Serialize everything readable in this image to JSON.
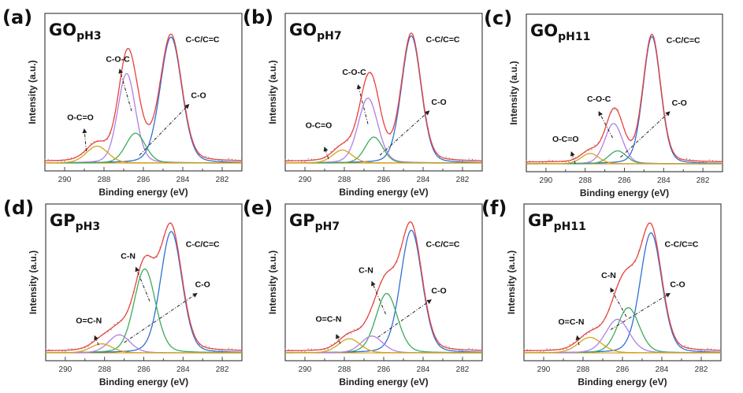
{
  "colors": {
    "envelope": "#e8423c",
    "raw_points": "#8a8a8a",
    "C-C/C=C": "#2f6fd6",
    "C-O-C": "#b27ee6",
    "C-N": "#3cab5c",
    "C-O_GO": "#3cab5c",
    "C-O_GP": "#b27ee6",
    "O-C=O": "#d6a21c",
    "O=C-N": "#d6a21c",
    "frame": "#444444",
    "arrow": "#222222"
  },
  "chart_data": [
    {
      "type": "line",
      "panel": "(a)",
      "title_main": "GO",
      "title_sub": "pH3",
      "xlabel": "Binding energy (eV)",
      "ylabel": "Intensity (a.u.)",
      "xlim": [
        291,
        281
      ],
      "ylim": [
        0,
        1.08
      ],
      "xticks": [
        290,
        288,
        286,
        284,
        282
      ],
      "grid": false,
      "series": [
        {
          "name": "C-C/C=C",
          "center": 284.6,
          "height": 0.97,
          "sigma": 0.55,
          "color_key": "C-C/C=C"
        },
        {
          "name": "C-O-C",
          "center": 286.85,
          "height": 0.69,
          "sigma": 0.45,
          "color_key": "C-O-C"
        },
        {
          "name": "C-O",
          "center": 286.4,
          "height": 0.23,
          "sigma": 0.5,
          "color_key": "C-O_GO"
        },
        {
          "name": "O-C=O",
          "center": 288.35,
          "height": 0.13,
          "sigma": 0.55,
          "color_key": "O-C=O"
        }
      ],
      "annotations": [
        {
          "text": "C-C/C=C",
          "x": 283.0,
          "y": 0.93
        },
        {
          "text": "C-O-C",
          "x": 287.3,
          "y": 0.78,
          "arrow_from": [
            286.6,
            0.4
          ],
          "arrow_to": [
            287.2,
            0.72
          ]
        },
        {
          "text": "C-O",
          "x": 283.2,
          "y": 0.5,
          "arrow_from": [
            286.2,
            0.06
          ],
          "arrow_to": [
            283.7,
            0.45
          ]
        },
        {
          "text": "O-C=O",
          "x": 289.2,
          "y": 0.33,
          "arrow_from": [
            288.9,
            0.09
          ],
          "arrow_to": [
            289.0,
            0.26
          ]
        }
      ]
    },
    {
      "type": "line",
      "panel": "(b)",
      "title_main": "GO",
      "title_sub": "pH7",
      "xlabel": "Binding energy (eV)",
      "ylabel": "Intensity (a.u.)",
      "xlim": [
        291,
        281
      ],
      "ylim": [
        0,
        1.08
      ],
      "xticks": [
        290,
        288,
        286,
        284,
        282
      ],
      "grid": false,
      "series": [
        {
          "name": "C-C/C=C",
          "center": 284.6,
          "height": 0.98,
          "sigma": 0.5,
          "color_key": "C-C/C=C"
        },
        {
          "name": "C-O-C",
          "center": 286.8,
          "height": 0.5,
          "sigma": 0.5,
          "color_key": "C-O-C"
        },
        {
          "name": "C-O",
          "center": 286.5,
          "height": 0.2,
          "sigma": 0.45,
          "color_key": "C-O_GO"
        },
        {
          "name": "O-C=O",
          "center": 288.1,
          "height": 0.1,
          "sigma": 0.5,
          "color_key": "O-C=O"
        }
      ],
      "annotations": [
        {
          "text": "C-C/C=C",
          "x": 283.0,
          "y": 0.93
        },
        {
          "text": "C-O-C",
          "x": 287.5,
          "y": 0.68,
          "arrow_from": [
            286.8,
            0.3
          ],
          "arrow_to": [
            287.3,
            0.6
          ]
        },
        {
          "text": "C-O",
          "x": 283.2,
          "y": 0.45,
          "arrow_from": [
            286.2,
            0.06
          ],
          "arrow_to": [
            283.7,
            0.4
          ]
        },
        {
          "text": "O-C=O",
          "x": 289.3,
          "y": 0.27,
          "arrow_from": [
            288.8,
            0.03
          ],
          "arrow_to": [
            289.0,
            0.12
          ]
        }
      ]
    },
    {
      "type": "line",
      "panel": "(c)",
      "title_main": "GO",
      "title_sub": "pH11",
      "xlabel": "Binding energy (eV)",
      "ylabel": "Intensity (a.u.)",
      "xlim": [
        291,
        281
      ],
      "ylim": [
        0,
        1.08
      ],
      "xticks": [
        290,
        288,
        286,
        284,
        282
      ],
      "grid": false,
      "series": [
        {
          "name": "C-C/C=C",
          "center": 284.6,
          "height": 0.98,
          "sigma": 0.45,
          "color_key": "C-C/C=C"
        },
        {
          "name": "C-O-C",
          "center": 286.55,
          "height": 0.31,
          "sigma": 0.45,
          "color_key": "C-O-C"
        },
        {
          "name": "C-O",
          "center": 286.35,
          "height": 0.1,
          "sigma": 0.45,
          "color_key": "C-O_GO"
        },
        {
          "name": "O-C=O",
          "center": 287.75,
          "height": 0.08,
          "sigma": 0.45,
          "color_key": "O-C=O"
        }
      ],
      "annotations": [
        {
          "text": "C-C/C=C",
          "x": 283.0,
          "y": 0.93
        },
        {
          "text": "C-O-C",
          "x": 287.3,
          "y": 0.48,
          "arrow_from": [
            286.6,
            0.2
          ],
          "arrow_to": [
            287.3,
            0.4
          ]
        },
        {
          "text": "C-O",
          "x": 283.2,
          "y": 0.45,
          "arrow_from": [
            286.2,
            0.05
          ],
          "arrow_to": [
            283.7,
            0.4
          ]
        },
        {
          "text": "O-C=O",
          "x": 289.0,
          "y": 0.17,
          "arrow_from": [
            288.5,
            0.0
          ],
          "arrow_to": [
            288.7,
            0.09
          ]
        }
      ]
    },
    {
      "type": "line",
      "panel": "(d)",
      "title_main": "GP",
      "title_sub": "pH3",
      "xlabel": "Binding energy (eV)",
      "ylabel": "Intensity (a.u.)",
      "xlim": [
        291,
        281
      ],
      "ylim": [
        0,
        1.08
      ],
      "xticks": [
        290,
        288,
        286,
        284,
        282
      ],
      "grid": false,
      "series": [
        {
          "name": "C-C/C=C",
          "center": 284.6,
          "height": 0.94,
          "sigma": 0.55,
          "color_key": "C-C/C=C"
        },
        {
          "name": "C-N",
          "center": 285.95,
          "height": 0.65,
          "sigma": 0.55,
          "color_key": "C-N"
        },
        {
          "name": "C-O",
          "center": 287.25,
          "height": 0.14,
          "sigma": 0.55,
          "color_key": "C-O_GP"
        },
        {
          "name": "O=C-N",
          "center": 288.15,
          "height": 0.07,
          "sigma": 0.55,
          "color_key": "O=C-N"
        }
      ],
      "annotations": [
        {
          "text": "C-C/C=C",
          "x": 283.0,
          "y": 0.82
        },
        {
          "text": "C-N",
          "x": 286.8,
          "y": 0.73,
          "arrow_from": [
            285.7,
            0.4
          ],
          "arrow_to": [
            286.4,
            0.66
          ]
        },
        {
          "text": "C-O",
          "x": 283.0,
          "y": 0.51,
          "arrow_from": [
            287.0,
            0.08
          ],
          "arrow_to": [
            283.3,
            0.46
          ]
        },
        {
          "text": "O=C-N",
          "x": 288.8,
          "y": 0.23,
          "arrow_from": [
            288.3,
            0.06
          ],
          "arrow_to": [
            288.5,
            0.13
          ]
        }
      ]
    },
    {
      "type": "line",
      "panel": "(e)",
      "title_main": "GP",
      "title_sub": "pH7",
      "xlabel": "Binding energy (eV)",
      "ylabel": "Intensity (a.u.)",
      "xlim": [
        291,
        281
      ],
      "ylim": [
        0,
        1.08
      ],
      "xticks": [
        290,
        288,
        286,
        284,
        282
      ],
      "grid": false,
      "series": [
        {
          "name": "C-C/C=C",
          "center": 284.6,
          "height": 0.95,
          "sigma": 0.55,
          "color_key": "C-C/C=C"
        },
        {
          "name": "C-N",
          "center": 285.85,
          "height": 0.46,
          "sigma": 0.55,
          "color_key": "C-N"
        },
        {
          "name": "C-O",
          "center": 286.6,
          "height": 0.13,
          "sigma": 0.55,
          "color_key": "C-O_GP"
        },
        {
          "name": "O=C-N",
          "center": 287.75,
          "height": 0.11,
          "sigma": 0.55,
          "color_key": "O=C-N"
        }
      ],
      "annotations": [
        {
          "text": "C-C/C=C",
          "x": 283.0,
          "y": 0.82
        },
        {
          "text": "C-N",
          "x": 286.9,
          "y": 0.62,
          "arrow_from": [
            285.9,
            0.3
          ],
          "arrow_to": [
            286.6,
            0.55
          ]
        },
        {
          "text": "C-O",
          "x": 283.2,
          "y": 0.46,
          "arrow_from": [
            286.3,
            0.12
          ],
          "arrow_to": [
            283.6,
            0.41
          ]
        },
        {
          "text": "O=C-N",
          "x": 288.8,
          "y": 0.24,
          "arrow_from": [
            288.2,
            0.07
          ],
          "arrow_to": [
            288.4,
            0.14
          ]
        }
      ]
    },
    {
      "type": "line",
      "panel": "(f)",
      "title_main": "GP",
      "title_sub": "pH11",
      "xlabel": "Binding energy (eV)",
      "ylabel": "Intensity (a.u.)",
      "xlim": [
        291,
        281
      ],
      "ylim": [
        0,
        1.08
      ],
      "xticks": [
        290,
        288,
        286,
        284,
        282
      ],
      "grid": false,
      "series": [
        {
          "name": "C-C/C=C",
          "center": 284.55,
          "height": 0.93,
          "sigma": 0.55,
          "color_key": "C-C/C=C"
        },
        {
          "name": "C-N",
          "center": 285.7,
          "height": 0.35,
          "sigma": 0.55,
          "color_key": "C-N"
        },
        {
          "name": "C-O",
          "center": 286.25,
          "height": 0.26,
          "sigma": 0.6,
          "color_key": "C-O_GP"
        },
        {
          "name": "O=C-N",
          "center": 287.65,
          "height": 0.12,
          "sigma": 0.6,
          "color_key": "O=C-N"
        }
      ],
      "annotations": [
        {
          "text": "C-C/C=C",
          "x": 283.0,
          "y": 0.82
        },
        {
          "text": "C-N",
          "x": 286.7,
          "y": 0.58,
          "arrow_from": [
            285.8,
            0.28
          ],
          "arrow_to": [
            286.6,
            0.5
          ]
        },
        {
          "text": "C-O",
          "x": 283.2,
          "y": 0.51,
          "arrow_from": [
            286.6,
            0.18
          ],
          "arrow_to": [
            283.6,
            0.46
          ]
        },
        {
          "text": "O=C-N",
          "x": 288.6,
          "y": 0.22,
          "arrow_from": [
            288.2,
            0.06
          ],
          "arrow_to": [
            288.3,
            0.13
          ]
        }
      ]
    }
  ]
}
